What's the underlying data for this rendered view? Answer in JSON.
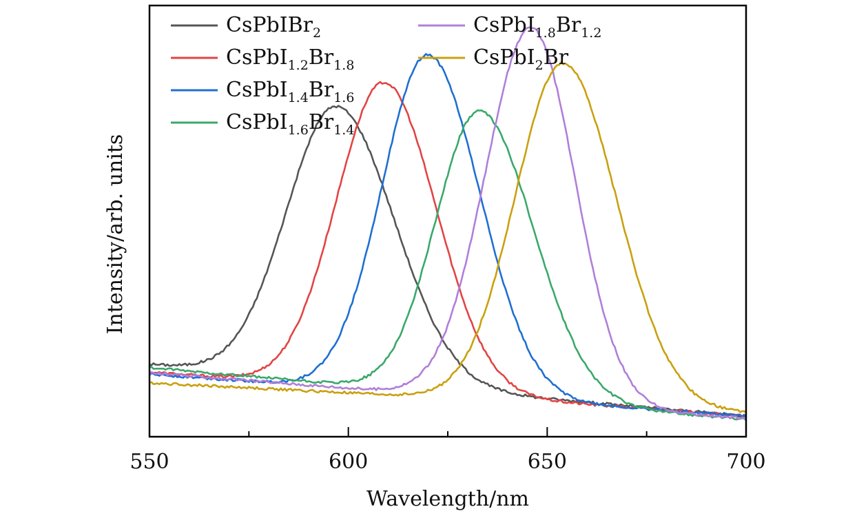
{
  "chart_data": {
    "type": "line",
    "xlabel": "Wavelength/nm",
    "ylabel": "Intensity/arb. units",
    "xlim": [
      550,
      700
    ],
    "ylim": [
      0,
      1.0
    ],
    "xticks": [
      550,
      600,
      650,
      700
    ],
    "xtick_labels": [
      "550",
      "600",
      "650",
      "700"
    ],
    "minor_xticks": [
      575,
      625,
      675
    ],
    "legend_position": "top-left",
    "series": [
      {
        "name": "CsPbIBr2",
        "label_base": "CsPbIBr",
        "label_parts": [
          [
            "2",
            true
          ]
        ],
        "color": "#555555",
        "peak": 597,
        "amp": 0.636,
        "sL": 12.5,
        "sR": 14.5,
        "baseline": [
          0.168,
          0.048
        ]
      },
      {
        "name": "CsPbI1.2Br1.8",
        "label_base": "CsPbI",
        "label_parts": [
          [
            "1.2",
            true
          ],
          [
            "Br",
            false
          ],
          [
            "1.8",
            true
          ]
        ],
        "color": "#e24444",
        "peak": 609,
        "amp": 0.712,
        "sL": 12.0,
        "sR": 13.0,
        "baseline": [
          0.15,
          0.048
        ]
      },
      {
        "name": "CsPbI1.4Br1.6",
        "label_base": "CsPbI",
        "label_parts": [
          [
            "1.4",
            true
          ],
          [
            "Br",
            false
          ],
          [
            "1.6",
            true
          ]
        ],
        "color": "#1f6fd2",
        "peak": 620,
        "amp": 0.786,
        "sL": 11.5,
        "sR": 13.0,
        "baseline": [
          0.145,
          0.048
        ]
      },
      {
        "name": "CsPbI1.6Br1.4",
        "label_base": "CsPbI",
        "label_parts": [
          [
            "1.6",
            true
          ],
          [
            "Br",
            false
          ],
          [
            "1.4",
            true
          ]
        ],
        "color": "#3aa86a",
        "peak": 633,
        "amp": 0.662,
        "sL": 11.0,
        "sR": 13.5,
        "baseline": [
          0.16,
          0.04
        ]
      },
      {
        "name": "CsPbI1.8Br1.2",
        "label_base": "CsPbI",
        "label_parts": [
          [
            "1.8",
            true
          ],
          [
            "Br",
            false
          ],
          [
            "1.2",
            true
          ]
        ],
        "color": "#b07fd9",
        "peak": 646,
        "amp": 0.868,
        "sL": 11.5,
        "sR": 11.0,
        "baseline": [
          0.148,
          0.042
        ]
      },
      {
        "name": "CsPbI2Br",
        "label_base": "CsPbI",
        "label_parts": [
          [
            "2",
            true
          ],
          [
            "Br",
            false
          ]
        ],
        "color": "#c9a00f",
        "peak": 654,
        "amp": 0.79,
        "sL": 12.0,
        "sR": 13.5,
        "baseline": [
          0.125,
          0.055
        ]
      }
    ]
  }
}
